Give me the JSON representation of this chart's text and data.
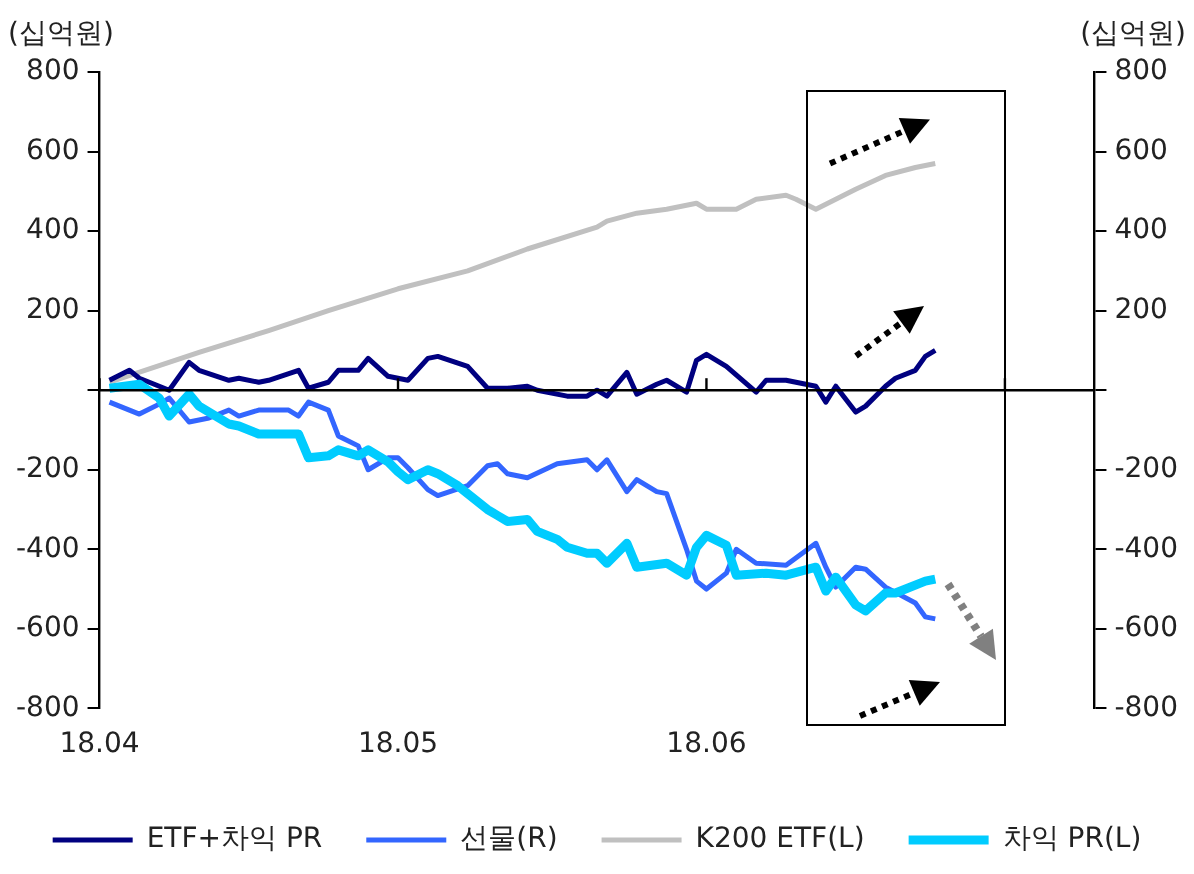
{
  "chart_data": {
    "type": "line",
    "ylabel": "(십억원)",
    "y2label": "(십억원)",
    "xlim": [
      "--04-01",
      "--07-10"
    ],
    "xticks": [
      {
        "value": "--04-01",
        "label": "18.04"
      },
      {
        "value": "--05-01",
        "label": "18.05"
      },
      {
        "value": "--06-01",
        "label": "18.06"
      },
      {
        "value": "--07-01",
        "label": null
      }
    ],
    "ylim": [
      -800,
      800
    ],
    "yticks": [
      -800,
      -600,
      -400,
      -200,
      {
        "value": 0,
        "label": null
      },
      200,
      400,
      600,
      800
    ],
    "y2lim": [
      -800,
      800
    ],
    "y2ticks": [
      -800,
      -600,
      -400,
      -200,
      {
        "value": 0,
        "label": null
      },
      200,
      400,
      600,
      800
    ],
    "grid": false,
    "ref_lines": [
      {
        "axis": "y",
        "value": 0,
        "color": "#000000"
      }
    ],
    "legend": "bottom",
    "marker": "none",
    "line_style": "solid",
    "series": [
      {
        "name": "ETF+차익 PR",
        "color": "#000080",
        "x": [
          "--04-02",
          "--04-04",
          "--04-05",
          "--04-08",
          "--04-10",
          "--04-11",
          "--04-14",
          "--04-15",
          "--04-17",
          "--04-18",
          "--04-21",
          "--04-22",
          "--04-24",
          "--04-25",
          "--04-27",
          "--04-28",
          "--04-30",
          "--05-02",
          "--05-04",
          "--05-05",
          "--05-08",
          "--05-10",
          "--05-12",
          "--05-14",
          "--05-15",
          "--05-18",
          "--05-20",
          "--05-21",
          "--05-22",
          "--05-24",
          "--05-25",
          "--05-27",
          "--05-28",
          "--05-30",
          "--05-31",
          "--06-01",
          "--06-03",
          "--06-06",
          "--06-07",
          "--06-09",
          "--06-12",
          "--06-13",
          "--06-14",
          "--06-16",
          "--06-17",
          "--06-19",
          "--06-20",
          "--06-22",
          "--06-23",
          "--06-24"
        ],
        "values": [
          25,
          50,
          30,
          0,
          70,
          50,
          25,
          30,
          20,
          25,
          50,
          5,
          20,
          50,
          50,
          80,
          35,
          25,
          80,
          85,
          60,
          5,
          5,
          10,
          0,
          -15,
          -15,
          0,
          -15,
          45,
          -10,
          15,
          25,
          -5,
          75,
          90,
          60,
          -5,
          25,
          25,
          10,
          -30,
          10,
          -55,
          -40,
          10,
          30,
          50,
          85,
          100
        ]
      },
      {
        "name": "선물(R)",
        "color": "#3366ff",
        "x": [
          "--04-02",
          "--04-04",
          "--04-05",
          "--04-07",
          "--04-08",
          "--04-10",
          "--04-12",
          "--04-14",
          "--04-15",
          "--04-17",
          "--04-20",
          "--04-21",
          "--04-22",
          "--04-24",
          "--04-25",
          "--04-27",
          "--04-28",
          "--04-30",
          "--05-01",
          "--05-02",
          "--05-04",
          "--05-05",
          "--05-08",
          "--05-10",
          "--05-11",
          "--05-12",
          "--05-14",
          "--05-17",
          "--05-20",
          "--05-21",
          "--05-22",
          "--05-24",
          "--05-25",
          "--05-27",
          "--05-28",
          "--05-30",
          "--05-31",
          "--06-01",
          "--06-03",
          "--06-04",
          "--06-06",
          "--06-09",
          "--06-12",
          "--06-13",
          "--06-14",
          "--06-16",
          "--06-17",
          "--06-19",
          "--06-22",
          "--06-23",
          "--06-24"
        ],
        "values": [
          -30,
          -50,
          -60,
          -35,
          -20,
          -80,
          -70,
          -50,
          -65,
          -50,
          -50,
          -65,
          -30,
          -50,
          -115,
          -140,
          -200,
          -170,
          -170,
          -195,
          -250,
          -265,
          -240,
          -190,
          -185,
          -210,
          -220,
          -185,
          -175,
          -200,
          -175,
          -255,
          -225,
          -255,
          -260,
          -400,
          -480,
          -500,
          -460,
          -400,
          -435,
          -440,
          -385,
          -445,
          -495,
          -445,
          -450,
          -495,
          -535,
          -570,
          -575
        ]
      },
      {
        "name": "K200 ETF(L)",
        "color": "#c0c0c0",
        "x": [
          "--04-02",
          "--04-11",
          "--04-18",
          "--04-24",
          "--05-01",
          "--05-08",
          "--05-14",
          "--05-21",
          "--05-22",
          "--05-25",
          "--05-28",
          "--05-31",
          "--06-01",
          "--06-04",
          "--06-06",
          "--06-09",
          "--06-10",
          "--06-12",
          "--06-14",
          "--06-16",
          "--06-19",
          "--06-22",
          "--06-24"
        ],
        "values": [
          20,
          95,
          150,
          200,
          255,
          300,
          355,
          410,
          425,
          445,
          455,
          470,
          455,
          455,
          480,
          490,
          480,
          455,
          480,
          505,
          540,
          560,
          570
        ]
      },
      {
        "name": "차익 PR(L)",
        "color": "#00ccff",
        "x": [
          "--04-02",
          "--04-05",
          "--04-07",
          "--04-08",
          "--04-10",
          "--04-11",
          "--04-14",
          "--04-15",
          "--04-17",
          "--04-21",
          "--04-22",
          "--04-24",
          "--04-25",
          "--04-27",
          "--04-28",
          "--04-30",
          "--05-01",
          "--05-02",
          "--05-04",
          "--05-05",
          "--05-07",
          "--05-10",
          "--05-11",
          "--05-12",
          "--05-14",
          "--05-15",
          "--05-17",
          "--05-18",
          "--05-20",
          "--05-21",
          "--05-22",
          "--05-24",
          "--05-25",
          "--05-28",
          "--05-30",
          "--05-31",
          "--06-01",
          "--06-03",
          "--06-04",
          "--06-07",
          "--06-09",
          "--06-12",
          "--06-13",
          "--06-14",
          "--06-16",
          "--06-17",
          "--06-19",
          "--06-20",
          "--06-23",
          "--06-24"
        ],
        "values": [
          5,
          15,
          -20,
          -65,
          -10,
          -40,
          -85,
          -90,
          -110,
          -110,
          -170,
          -165,
          -150,
          -165,
          -150,
          -180,
          -205,
          -225,
          -200,
          -210,
          -240,
          -300,
          -315,
          -330,
          -325,
          -355,
          -375,
          -395,
          -410,
          -410,
          -435,
          -385,
          -445,
          -435,
          -465,
          -395,
          -365,
          -390,
          -465,
          -460,
          -465,
          -445,
          -505,
          -470,
          -540,
          -555,
          -510,
          -510,
          -480,
          -475
        ]
      }
    ]
  }
}
